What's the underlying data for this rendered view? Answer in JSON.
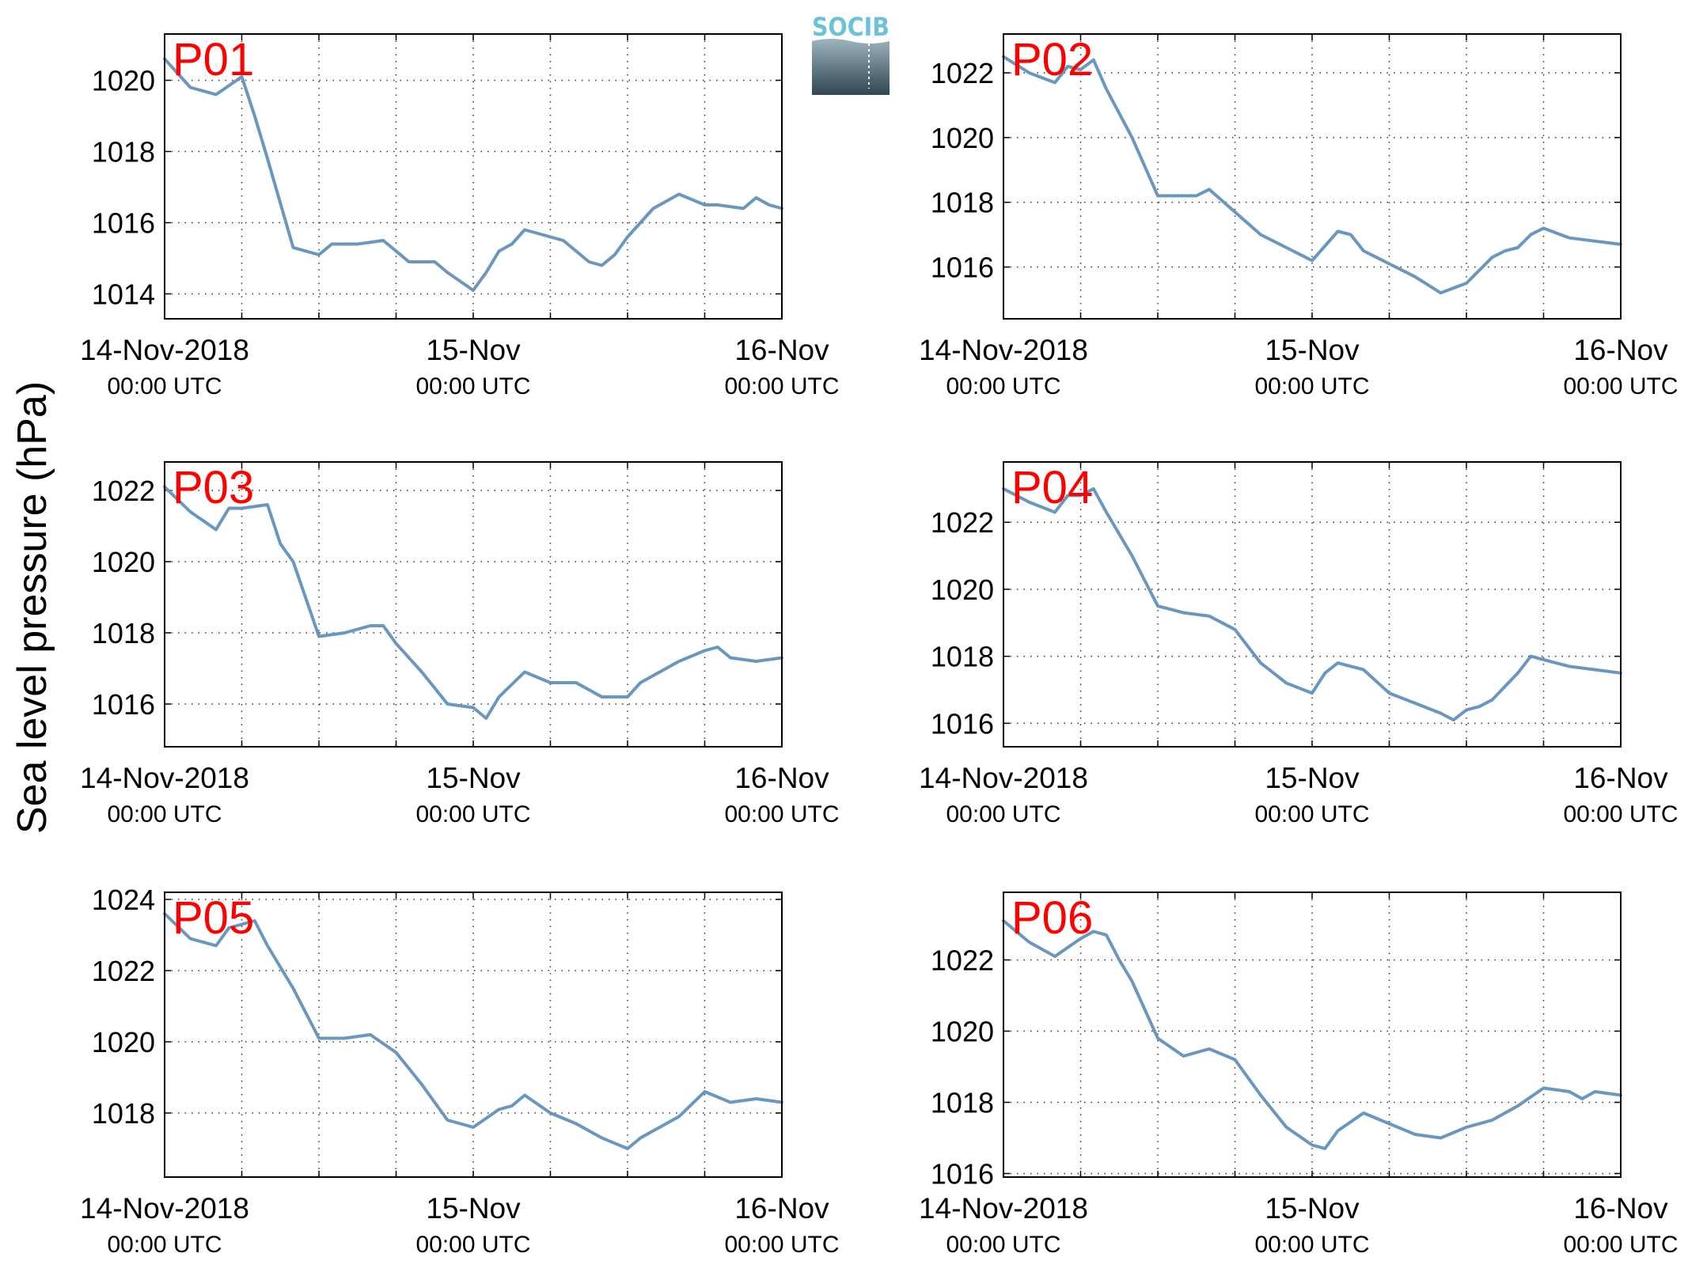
{
  "ylabel": "Sea level pressure (hPa)",
  "logo": {
    "text": "SOCIB",
    "color": "#6cc3d9"
  },
  "line_color": "#6a97be",
  "panel_label_color": "#ff0000",
  "x_ticks": [
    {
      "t": 0,
      "main": "14-Nov-2018",
      "sub": "00:00 UTC"
    },
    {
      "t": 24,
      "main": "15-Nov",
      "sub": "00:00 UTC"
    },
    {
      "t": 48,
      "main": "16-Nov",
      "sub": "00:00 UTC"
    }
  ],
  "chart_data": [
    {
      "type": "line",
      "label": "P01",
      "xunit": "hours since 14-Nov-2018 00:00 UTC",
      "xlim": [
        0,
        48
      ],
      "ylim": [
        1013.3,
        1021.3
      ],
      "yticks": [
        1014,
        1016,
        1018,
        1020
      ],
      "x": [
        0,
        2,
        4,
        6,
        7,
        8,
        10,
        12,
        13,
        15,
        17,
        19,
        21,
        22,
        24,
        25,
        26,
        27,
        28,
        29,
        30,
        31,
        33,
        34,
        35,
        36,
        37,
        38,
        40,
        42,
        43,
        45,
        46,
        47,
        48
      ],
      "y": [
        1020.6,
        1019.8,
        1019.6,
        1020.1,
        1019.0,
        1017.8,
        1015.3,
        1015.1,
        1015.4,
        1015.4,
        1015.5,
        1014.9,
        1014.9,
        1014.6,
        1014.1,
        1014.6,
        1015.2,
        1015.4,
        1015.8,
        1015.7,
        1015.6,
        1015.5,
        1014.9,
        1014.8,
        1015.1,
        1015.6,
        1016.0,
        1016.4,
        1016.8,
        1016.5,
        1016.5,
        1016.4,
        1016.7,
        1016.5,
        1016.4
      ]
    },
    {
      "type": "line",
      "label": "P02",
      "xunit": "hours since 14-Nov-2018 00:00 UTC",
      "xlim": [
        0,
        48
      ],
      "ylim": [
        1014.4,
        1023.2
      ],
      "yticks": [
        1016,
        1018,
        1020,
        1022
      ],
      "x": [
        0,
        2,
        4,
        5,
        6,
        7,
        8,
        10,
        12,
        14,
        15,
        16,
        18,
        20,
        22,
        24,
        26,
        27,
        28,
        29,
        30,
        32,
        34,
        36,
        37,
        38,
        39,
        40,
        41,
        42,
        44,
        46,
        48
      ],
      "y": [
        1022.5,
        1022.0,
        1021.7,
        1022.2,
        1022.1,
        1022.4,
        1021.5,
        1020.0,
        1018.2,
        1018.2,
        1018.2,
        1018.4,
        1017.7,
        1017.0,
        1016.6,
        1016.2,
        1017.1,
        1017.0,
        1016.5,
        1016.3,
        1016.1,
        1015.7,
        1015.2,
        1015.5,
        1015.9,
        1016.3,
        1016.5,
        1016.6,
        1017.0,
        1017.2,
        1016.9,
        1016.8,
        1016.7
      ]
    },
    {
      "type": "line",
      "label": "P03",
      "xunit": "hours since 14-Nov-2018 00:00 UTC",
      "xlim": [
        0,
        48
      ],
      "ylim": [
        1014.8,
        1022.8
      ],
      "yticks": [
        1016,
        1018,
        1020,
        1022
      ],
      "x": [
        0,
        2,
        4,
        5,
        6,
        8,
        9,
        10,
        12,
        14,
        16,
        17,
        18,
        20,
        22,
        24,
        25,
        26,
        28,
        30,
        32,
        34,
        36,
        37,
        38,
        40,
        42,
        43,
        44,
        46,
        48
      ],
      "y": [
        1022.1,
        1021.4,
        1020.9,
        1021.5,
        1021.5,
        1021.6,
        1020.5,
        1020.0,
        1017.9,
        1018.0,
        1018.2,
        1018.2,
        1017.7,
        1016.9,
        1016.0,
        1015.9,
        1015.6,
        1016.2,
        1016.9,
        1016.6,
        1016.6,
        1016.2,
        1016.2,
        1016.6,
        1016.8,
        1017.2,
        1017.5,
        1017.6,
        1017.3,
        1017.2,
        1017.3
      ]
    },
    {
      "type": "line",
      "label": "P04",
      "xunit": "hours since 14-Nov-2018 00:00 UTC",
      "xlim": [
        0,
        48
      ],
      "ylim": [
        1015.3,
        1023.8
      ],
      "yticks": [
        1016,
        1018,
        1020,
        1022
      ],
      "x": [
        0,
        2,
        4,
        5,
        6,
        7,
        8,
        10,
        12,
        14,
        16,
        18,
        20,
        22,
        24,
        25,
        26,
        28,
        30,
        32,
        34,
        35,
        36,
        37,
        38,
        40,
        41,
        42,
        44,
        46,
        48
      ],
      "y": [
        1023.0,
        1022.6,
        1022.3,
        1022.8,
        1022.8,
        1023.0,
        1022.3,
        1021.0,
        1019.5,
        1019.3,
        1019.2,
        1018.8,
        1017.8,
        1017.2,
        1016.9,
        1017.5,
        1017.8,
        1017.6,
        1016.9,
        1016.6,
        1016.3,
        1016.1,
        1016.4,
        1016.5,
        1016.7,
        1017.5,
        1018.0,
        1017.9,
        1017.7,
        1017.6,
        1017.5
      ]
    },
    {
      "type": "line",
      "label": "P05",
      "xunit": "hours since 14-Nov-2018 00:00 UTC",
      "xlim": [
        0,
        48
      ],
      "ylim": [
        1016.2,
        1024.2
      ],
      "yticks": [
        1018,
        1020,
        1022,
        1024
      ],
      "x": [
        0,
        2,
        4,
        5,
        6,
        7,
        8,
        10,
        12,
        14,
        16,
        18,
        20,
        22,
        24,
        26,
        27,
        28,
        30,
        32,
        33,
        34,
        36,
        37,
        38,
        40,
        42,
        44,
        46,
        48
      ],
      "y": [
        1023.6,
        1022.9,
        1022.7,
        1023.2,
        1023.3,
        1023.4,
        1022.7,
        1021.5,
        1020.1,
        1020.1,
        1020.2,
        1019.7,
        1018.8,
        1017.8,
        1017.6,
        1018.1,
        1018.2,
        1018.5,
        1018.0,
        1017.7,
        1017.5,
        1017.3,
        1017.0,
        1017.3,
        1017.5,
        1017.9,
        1018.6,
        1018.3,
        1018.4,
        1018.3
      ]
    },
    {
      "type": "line",
      "label": "P06",
      "xunit": "hours since 14-Nov-2018 00:00 UTC",
      "xlim": [
        0,
        48
      ],
      "ylim": [
        1015.9,
        1023.9
      ],
      "yticks": [
        1016,
        1018,
        1020,
        1022
      ],
      "x": [
        0,
        2,
        4,
        6,
        7,
        8,
        9,
        10,
        12,
        14,
        16,
        18,
        20,
        22,
        24,
        25,
        26,
        28,
        30,
        32,
        34,
        36,
        38,
        40,
        42,
        44,
        45,
        46,
        48
      ],
      "y": [
        1023.1,
        1022.5,
        1022.1,
        1022.6,
        1022.8,
        1022.7,
        1022.0,
        1021.4,
        1019.8,
        1019.3,
        1019.5,
        1019.2,
        1018.2,
        1017.3,
        1016.8,
        1016.7,
        1017.2,
        1017.7,
        1017.4,
        1017.1,
        1017.0,
        1017.3,
        1017.5,
        1017.9,
        1018.4,
        1018.3,
        1018.1,
        1018.3,
        1018.2
      ]
    }
  ]
}
